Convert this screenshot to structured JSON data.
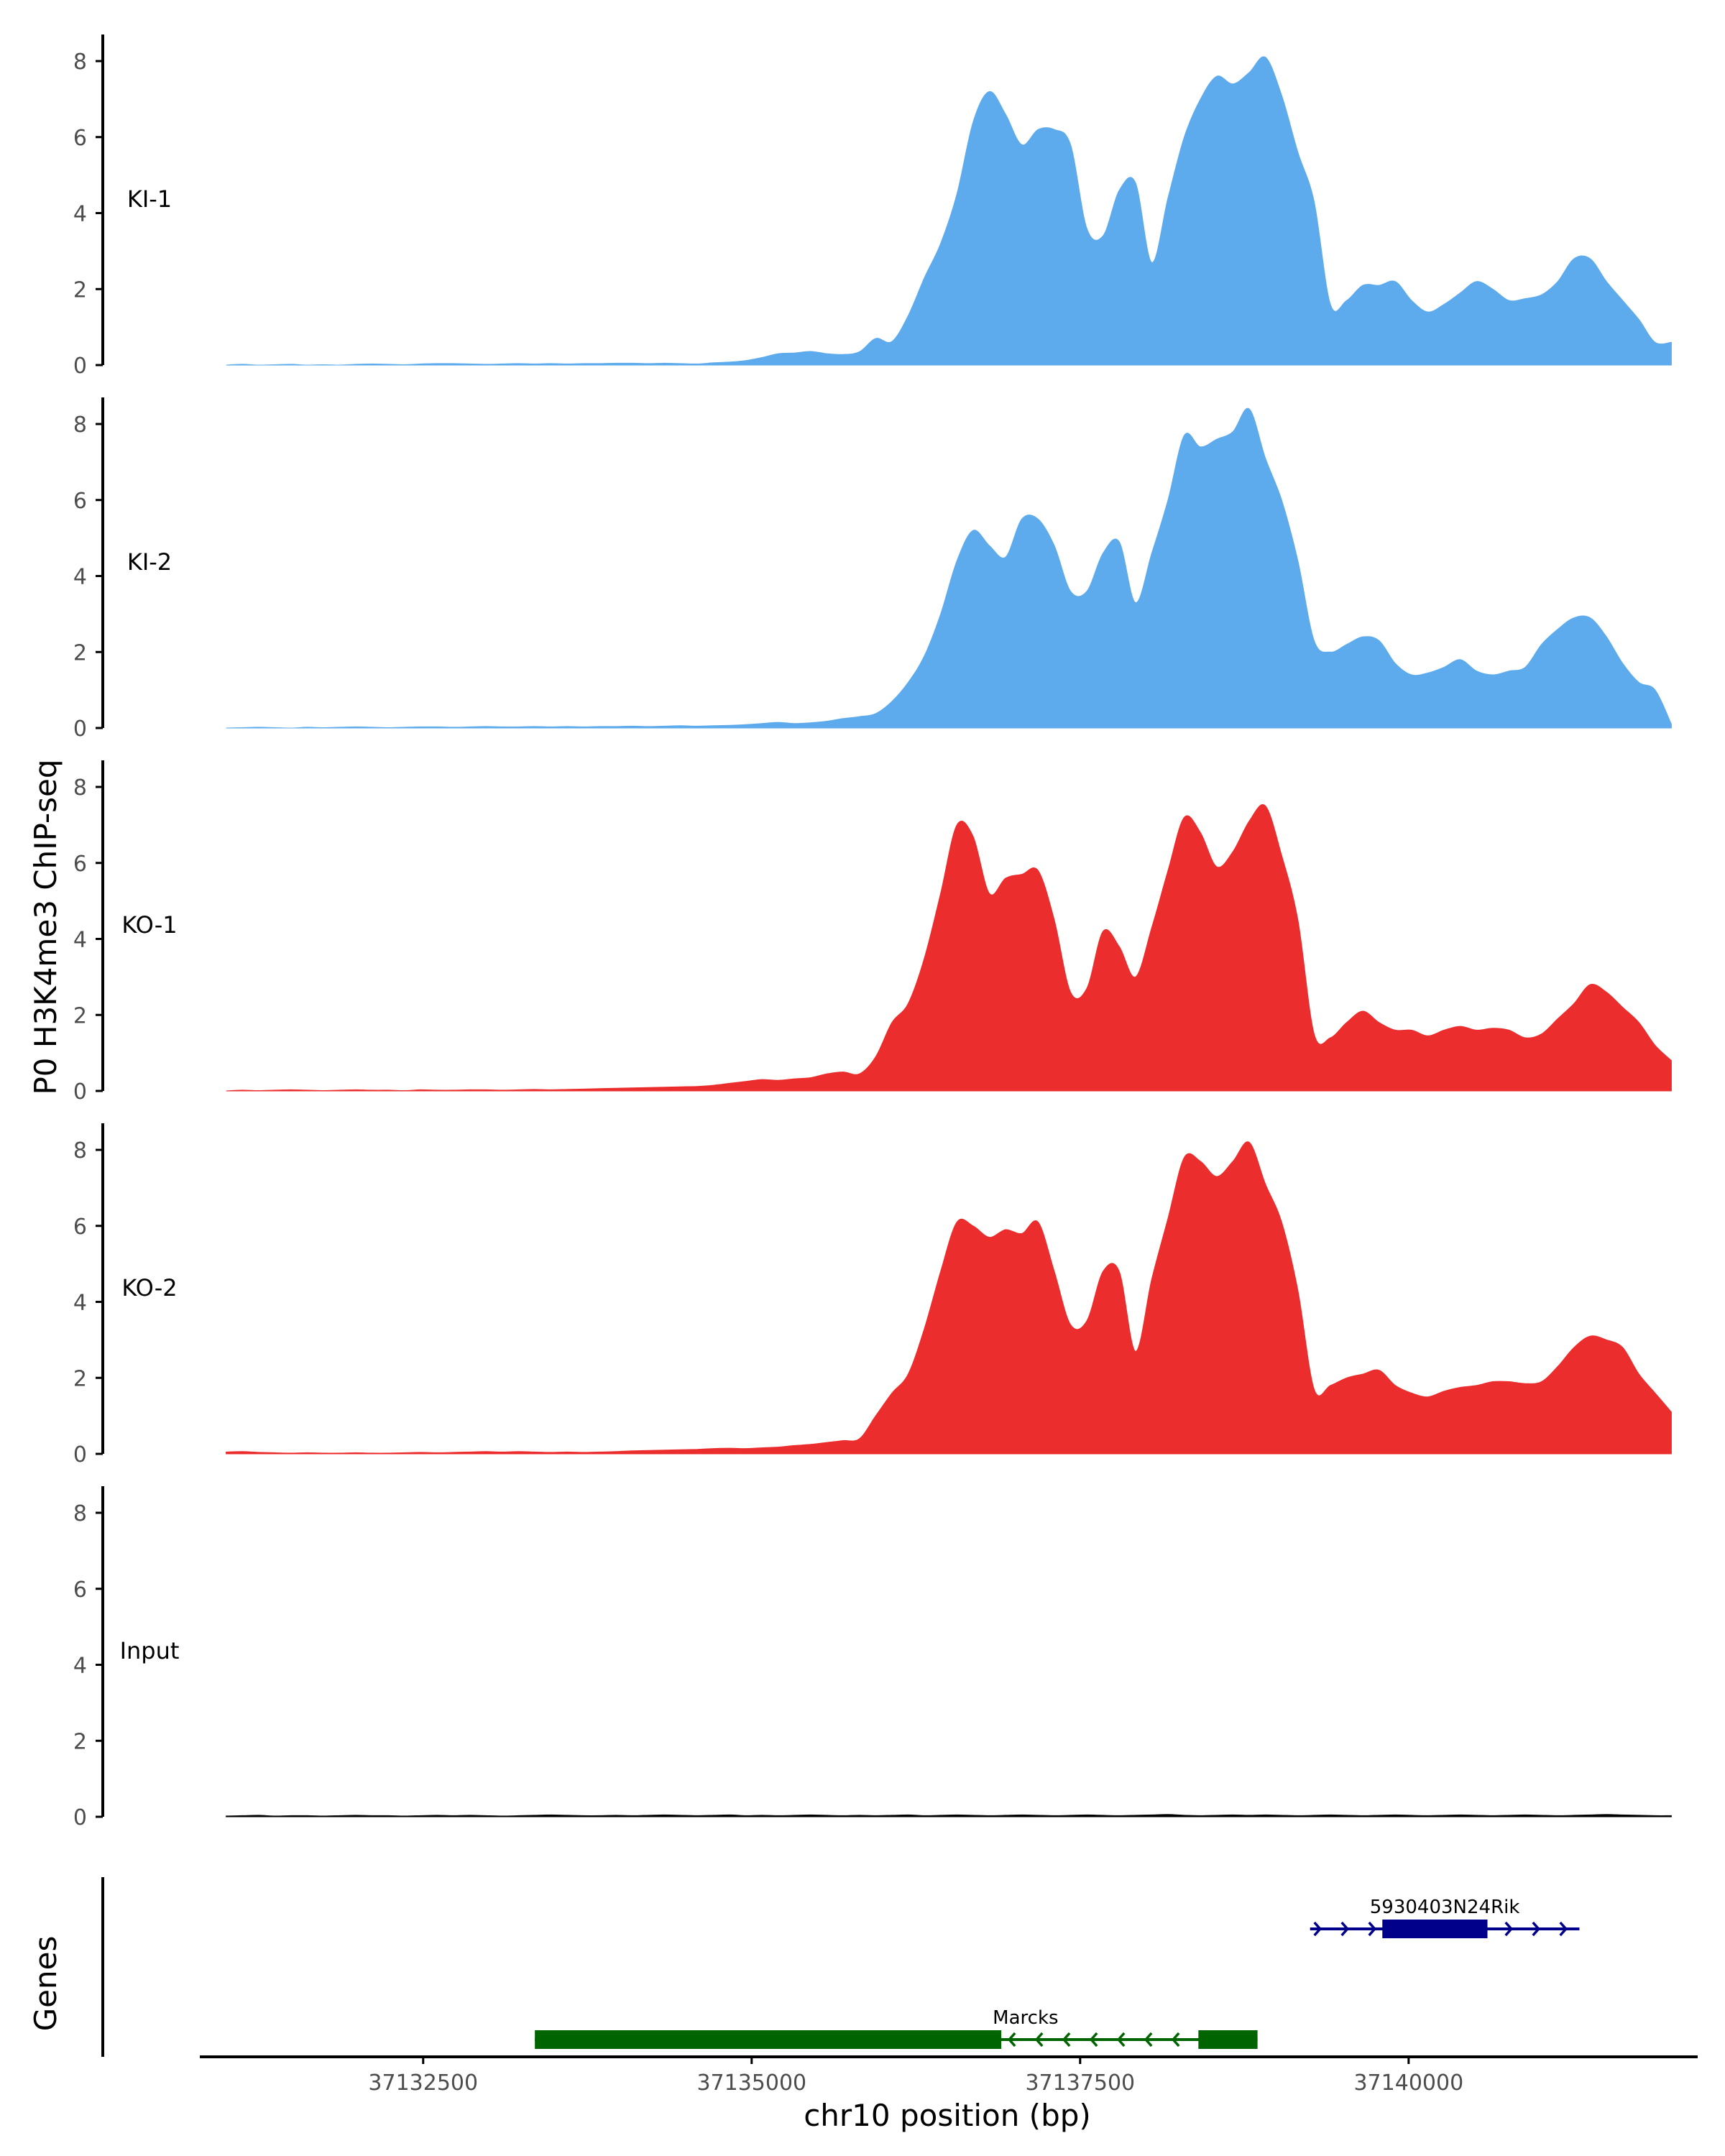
{
  "chart_data": {
    "type": "area",
    "ylabel": "P0 H3K4me3 ChIP-seq",
    "xlabel": "chr10 position (bp)",
    "x_range": [
      37130800,
      37142200
    ],
    "ylim": [
      0,
      8.7
    ],
    "y_ticks": [
      0,
      2,
      4,
      6,
      8
    ],
    "x_ticks": [
      37132500,
      37135000,
      37137500,
      37140000
    ],
    "x_tick_labels": [
      "37132500",
      "37135000",
      "37137500",
      "37140000"
    ],
    "x_data_range": [
      37131000,
      37142000
    ],
    "tracks": [
      {
        "name": "KI-1",
        "color": "#5dabec",
        "values": [
          0,
          0.02,
          0,
          0.01,
          0.02,
          0,
          0.01,
          0,
          0.02,
          0.03,
          0.02,
          0.01,
          0.03,
          0.04,
          0.04,
          0.03,
          0.02,
          0.03,
          0.04,
          0.03,
          0.04,
          0.03,
          0.04,
          0.04,
          0.05,
          0.05,
          0.04,
          0.05,
          0.04,
          0.03,
          0.06,
          0.08,
          0.12,
          0.2,
          0.3,
          0.32,
          0.36,
          0.3,
          0.28,
          0.35,
          0.7,
          0.62,
          1.3,
          2.3,
          3.2,
          4.5,
          6.4,
          7.2,
          6.6,
          5.8,
          6.2,
          6.2,
          5.8,
          3.6,
          3.4,
          4.6,
          4.8,
          2.7,
          4.4,
          6.0,
          7.0,
          7.6,
          7.4,
          7.7,
          8.1,
          7.1,
          5.6,
          4.3,
          1.6,
          1.7,
          2.1,
          2.1,
          2.2,
          1.7,
          1.4,
          1.6,
          1.9,
          2.2,
          2.0,
          1.7,
          1.75,
          1.85,
          2.2,
          2.8,
          2.8,
          2.2,
          1.7,
          1.2,
          0.6,
          0.6
        ]
      },
      {
        "name": "KI-2",
        "color": "#5dabec",
        "values": [
          0,
          0.01,
          0.02,
          0.01,
          0,
          0.02,
          0.01,
          0.02,
          0.03,
          0.02,
          0.01,
          0.02,
          0.03,
          0.03,
          0.02,
          0.03,
          0.04,
          0.03,
          0.03,
          0.04,
          0.03,
          0.04,
          0.03,
          0.04,
          0.04,
          0.05,
          0.04,
          0.05,
          0.06,
          0.05,
          0.06,
          0.07,
          0.09,
          0.12,
          0.15,
          0.12,
          0.14,
          0.18,
          0.25,
          0.3,
          0.38,
          0.7,
          1.2,
          1.9,
          3.0,
          4.4,
          5.2,
          4.8,
          4.5,
          5.5,
          5.5,
          4.8,
          3.6,
          3.6,
          4.6,
          4.9,
          3.3,
          4.6,
          6.0,
          7.7,
          7.4,
          7.6,
          7.8,
          8.4,
          7.1,
          6.0,
          4.4,
          2.3,
          2.0,
          2.2,
          2.4,
          2.3,
          1.7,
          1.4,
          1.45,
          1.6,
          1.8,
          1.5,
          1.4,
          1.5,
          1.6,
          2.2,
          2.6,
          2.9,
          2.9,
          2.4,
          1.7,
          1.2,
          1.0,
          0.1
        ]
      },
      {
        "name": "KO-1",
        "color": "#ec2d2d",
        "values": [
          0,
          0.02,
          0.01,
          0.02,
          0.03,
          0.02,
          0.01,
          0.02,
          0.03,
          0.02,
          0.02,
          0.01,
          0.03,
          0.02,
          0.02,
          0.03,
          0.03,
          0.02,
          0.03,
          0.04,
          0.03,
          0.04,
          0.05,
          0.06,
          0.07,
          0.08,
          0.09,
          0.1,
          0.11,
          0.12,
          0.15,
          0.2,
          0.25,
          0.3,
          0.28,
          0.32,
          0.35,
          0.45,
          0.5,
          0.45,
          0.9,
          1.8,
          2.3,
          3.5,
          5.2,
          7.0,
          6.7,
          5.2,
          5.6,
          5.7,
          5.8,
          4.5,
          2.6,
          2.7,
          4.2,
          3.8,
          3.0,
          4.3,
          5.8,
          7.2,
          6.8,
          5.9,
          6.3,
          7.1,
          7.5,
          6.2,
          4.5,
          1.5,
          1.4,
          1.8,
          2.1,
          1.8,
          1.6,
          1.6,
          1.45,
          1.6,
          1.7,
          1.6,
          1.65,
          1.6,
          1.4,
          1.5,
          1.9,
          2.3,
          2.8,
          2.6,
          2.2,
          1.8,
          1.2,
          0.8
        ]
      },
      {
        "name": "KO-2",
        "color": "#ec2d2d",
        "values": [
          0.05,
          0.06,
          0.04,
          0.03,
          0.02,
          0.03,
          0.02,
          0.02,
          0.03,
          0.02,
          0.02,
          0.03,
          0.04,
          0.03,
          0.04,
          0.05,
          0.06,
          0.05,
          0.06,
          0.05,
          0.04,
          0.05,
          0.04,
          0.05,
          0.06,
          0.08,
          0.09,
          0.1,
          0.11,
          0.12,
          0.14,
          0.15,
          0.14,
          0.16,
          0.18,
          0.22,
          0.25,
          0.3,
          0.35,
          0.4,
          1.0,
          1.6,
          2.1,
          3.3,
          4.8,
          6.1,
          6.0,
          5.7,
          5.9,
          5.8,
          6.1,
          4.8,
          3.4,
          3.5,
          4.8,
          4.8,
          2.7,
          4.6,
          6.2,
          7.8,
          7.7,
          7.3,
          7.7,
          8.2,
          7.1,
          6.1,
          4.3,
          1.7,
          1.8,
          2.0,
          2.1,
          2.2,
          1.8,
          1.6,
          1.5,
          1.65,
          1.75,
          1.8,
          1.9,
          1.9,
          1.85,
          1.9,
          2.3,
          2.8,
          3.1,
          3.0,
          2.8,
          2.1,
          1.6,
          1.1
        ]
      },
      {
        "name": "Input",
        "color": "#000000",
        "values": [
          0.02,
          0.03,
          0.04,
          0.02,
          0.03,
          0.03,
          0.02,
          0.03,
          0.04,
          0.03,
          0.03,
          0.02,
          0.03,
          0.04,
          0.03,
          0.04,
          0.03,
          0.02,
          0.03,
          0.04,
          0.05,
          0.04,
          0.03,
          0.03,
          0.04,
          0.03,
          0.04,
          0.05,
          0.04,
          0.03,
          0.04,
          0.05,
          0.03,
          0.04,
          0.03,
          0.04,
          0.05,
          0.04,
          0.03,
          0.04,
          0.03,
          0.04,
          0.05,
          0.03,
          0.04,
          0.05,
          0.04,
          0.03,
          0.04,
          0.05,
          0.04,
          0.03,
          0.04,
          0.05,
          0.04,
          0.03,
          0.04,
          0.05,
          0.06,
          0.04,
          0.03,
          0.04,
          0.05,
          0.04,
          0.05,
          0.04,
          0.03,
          0.04,
          0.05,
          0.04,
          0.03,
          0.04,
          0.05,
          0.04,
          0.03,
          0.04,
          0.05,
          0.04,
          0.03,
          0.04,
          0.05,
          0.04,
          0.03,
          0.04,
          0.05,
          0.06,
          0.05,
          0.04,
          0.03,
          0.03
        ]
      }
    ],
    "genes_panel": {
      "label": "Genes",
      "genes": [
        {
          "name": "5930403N24Rik",
          "strand": "+",
          "color": "#00008b",
          "start": 37139250,
          "end": 37141300,
          "exons": [
            [
              37139800,
              37140600
            ]
          ]
        },
        {
          "name": "Marcks",
          "strand": "-",
          "color": "#006400",
          "start": 37133350,
          "end": 37138850,
          "exons": [
            [
              37133350,
              37136900
            ],
            [
              37138400,
              37138850
            ]
          ]
        }
      ]
    }
  }
}
